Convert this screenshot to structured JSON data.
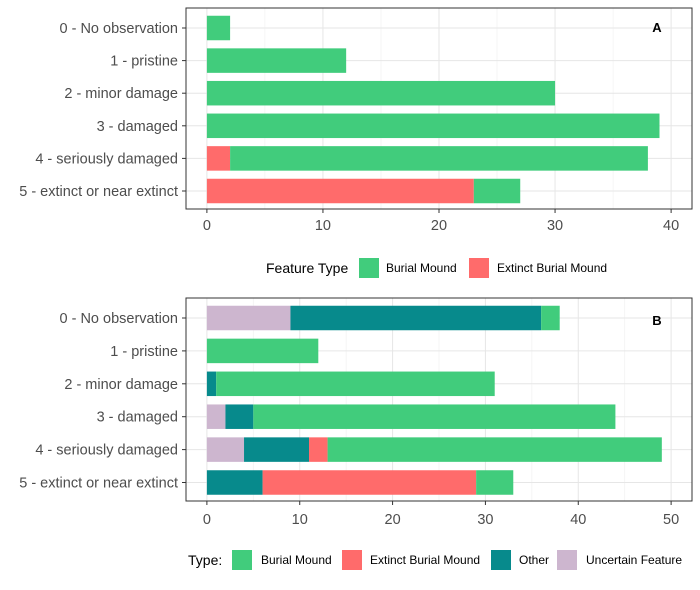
{
  "colors": {
    "Burial Mound": "#41cc7c",
    "Extinct Burial Mound": "#ff6b6b",
    "Other": "#078a8c",
    "Uncertain Feature": "#cdb6cf"
  },
  "chart_data": [
    {
      "type": "bar",
      "orientation": "horizontal",
      "stacked": true,
      "panel_tag": "A",
      "categories": [
        "0 - No observation",
        "1 - pristine",
        "2 - minor damage",
        "3 - damaged",
        "4 - seriously damaged",
        "5 - extinct or near extinct"
      ],
      "series": [
        {
          "name": "Extinct Burial Mound",
          "values": [
            0,
            0,
            0,
            0,
            2,
            23
          ]
        },
        {
          "name": "Burial Mound",
          "values": [
            2,
            12,
            30,
            39,
            36,
            4
          ]
        }
      ],
      "xlim": [
        0,
        40
      ],
      "xticks": [
        0,
        10,
        20,
        30,
        40
      ],
      "grid": true,
      "legend": {
        "title": "Feature Type",
        "entries": [
          "Burial Mound",
          "Extinct Burial Mound"
        ],
        "placement": "bottom"
      }
    },
    {
      "type": "bar",
      "orientation": "horizontal",
      "stacked": true,
      "panel_tag": "B",
      "categories": [
        "0 - No observation",
        "1 - pristine",
        "2 - minor damage",
        "3 - damaged",
        "4 - seriously damaged",
        "5 - extinct or near extinct"
      ],
      "series": [
        {
          "name": "Uncertain Feature",
          "values": [
            9,
            0,
            0,
            2,
            4,
            0
          ]
        },
        {
          "name": "Other",
          "values": [
            27,
            0,
            1,
            3,
            7,
            6
          ]
        },
        {
          "name": "Extinct Burial Mound",
          "values": [
            0,
            0,
            0,
            0,
            2,
            23
          ]
        },
        {
          "name": "Burial Mound",
          "values": [
            2,
            12,
            30,
            39,
            36,
            4
          ]
        }
      ],
      "xlim": [
        0,
        50
      ],
      "xticks": [
        0,
        10,
        20,
        30,
        40,
        50
      ],
      "grid": true,
      "legend": {
        "title": "Type:",
        "entries": [
          "Burial Mound",
          "Extinct Burial Mound",
          "Other",
          "Uncertain Feature"
        ],
        "placement": "bottom"
      }
    }
  ]
}
